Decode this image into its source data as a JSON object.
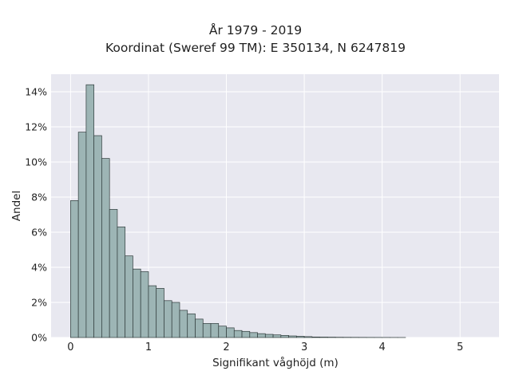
{
  "chart_data": {
    "type": "bar",
    "title": "År 1979 - 2019",
    "subtitle": "Koordinat (Sweref 99 TM): E 350134, N 6247819",
    "xlabel": "Signifikant våghöjd (m)",
    "ylabel": "Andel",
    "xlim": [
      -0.25,
      5.5
    ],
    "ylim": [
      0,
      15
    ],
    "xticks": [
      0,
      1,
      2,
      3,
      4,
      5
    ],
    "yticks": [
      0,
      2,
      4,
      6,
      8,
      10,
      12,
      14
    ],
    "ytick_labels": [
      "0%",
      "2%",
      "4%",
      "6%",
      "8%",
      "10%",
      "12%",
      "14%"
    ],
    "bin_width": 0.1,
    "bin_starts": [
      0.0,
      0.1,
      0.2,
      0.3,
      0.4,
      0.5,
      0.6,
      0.7,
      0.8,
      0.9,
      1.0,
      1.1,
      1.2,
      1.3,
      1.4,
      1.5,
      1.6,
      1.7,
      1.8,
      1.9,
      2.0,
      2.1,
      2.2,
      2.3,
      2.4,
      2.5,
      2.6,
      2.7,
      2.8,
      2.9,
      3.0,
      3.1,
      3.2,
      3.3,
      3.4,
      3.5,
      3.6,
      3.7,
      3.8,
      3.9,
      4.0,
      4.1,
      4.2
    ],
    "values": [
      7.8,
      11.7,
      14.4,
      11.5,
      10.2,
      7.3,
      6.3,
      4.65,
      3.9,
      3.75,
      2.95,
      2.8,
      2.1,
      2.0,
      1.55,
      1.35,
      1.05,
      0.8,
      0.8,
      0.65,
      0.55,
      0.4,
      0.35,
      0.28,
      0.22,
      0.18,
      0.15,
      0.12,
      0.09,
      0.07,
      0.05,
      0.03,
      0.025,
      0.02,
      0.015,
      0.012,
      0.01,
      0.008,
      0.006,
      0.005,
      0.004,
      0.003,
      0.002
    ],
    "grid": true,
    "colors": {
      "bar_fill": "#9db5b5",
      "bar_edge": "#2f3b3b",
      "plot_background": "#e8e8f0",
      "grid": "#ffffff"
    }
  }
}
